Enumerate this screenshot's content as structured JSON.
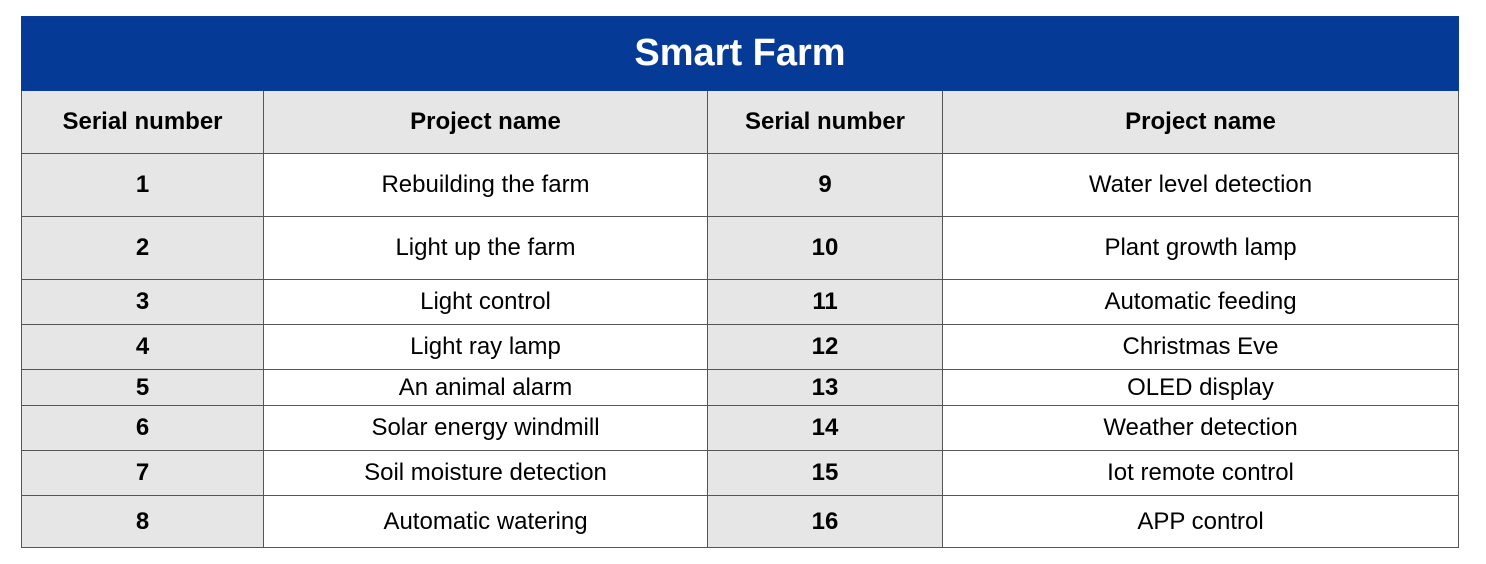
{
  "colors": {
    "title_background": "#053a96",
    "title_text": "#ffffff",
    "serial_background": "#e6e6e6",
    "border": "#555555"
  },
  "title": "Smart Farm",
  "headers": [
    "Serial number",
    "Project name",
    "Serial number",
    "Project name"
  ],
  "rows": [
    {
      "left_serial": "1",
      "left_name": "Rebuilding the farm",
      "right_serial": "9",
      "right_name": "Water level detection"
    },
    {
      "left_serial": "2",
      "left_name": "Light up the farm",
      "right_serial": "10",
      "right_name": "Plant growth lamp"
    },
    {
      "left_serial": "3",
      "left_name": "Light control",
      "right_serial": "11",
      "right_name": "Automatic feeding"
    },
    {
      "left_serial": "4",
      "left_name": "Light ray lamp",
      "right_serial": "12",
      "right_name": "Christmas Eve"
    },
    {
      "left_serial": "5",
      "left_name": "An animal alarm",
      "right_serial": "13",
      "right_name": "OLED display"
    },
    {
      "left_serial": "6",
      "left_name": "Solar energy windmill",
      "right_serial": "14",
      "right_name": "Weather detection"
    },
    {
      "left_serial": "7",
      "left_name": "Soil moisture detection",
      "right_serial": "15",
      "right_name": "Iot remote control"
    },
    {
      "left_serial": "8",
      "left_name": "Automatic watering",
      "right_serial": "16",
      "right_name": "APP control"
    }
  ]
}
